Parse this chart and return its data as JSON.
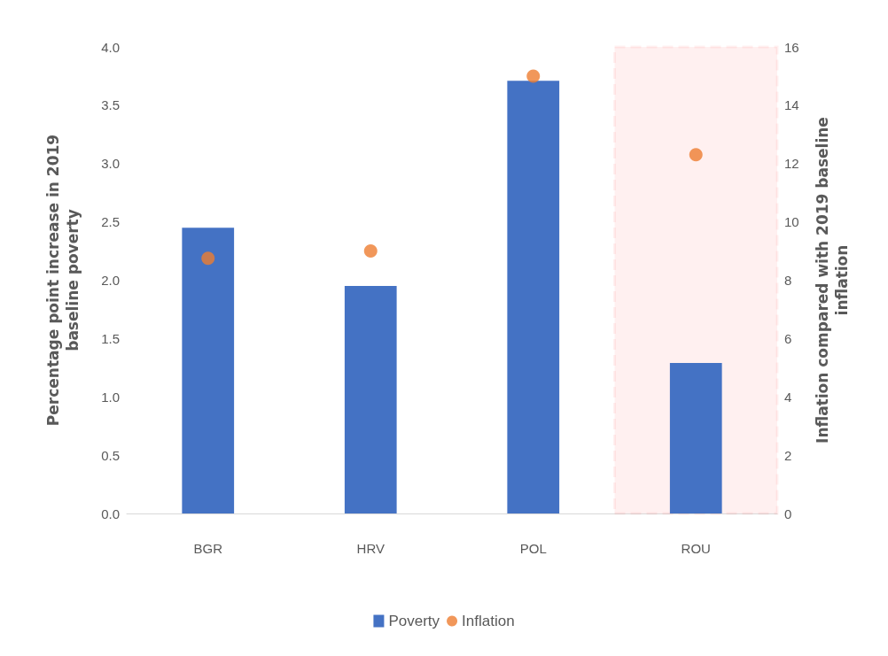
{
  "chart_data": {
    "type": "bar",
    "categories": [
      "BGR",
      "HRV",
      "POL",
      "ROU"
    ],
    "series": [
      {
        "name": "Poverty",
        "color": "#4472c4",
        "values": [
          2.45,
          1.95,
          3.71,
          1.29
        ]
      },
      {
        "name": "Inflation",
        "type": "scatter",
        "axis": "y2",
        "color": "#ed7d31",
        "marker": "circle",
        "values": [
          8.75,
          9.0,
          15.0,
          12.3
        ]
      }
    ],
    "ylabel": "Percentage point increase in 2019 baseline poverty",
    "y2label": "Inflation compared with 2019 baseline inflation",
    "ylim": [
      0,
      4
    ],
    "yticks": [
      {
        "value": 0,
        "label": "0.0"
      },
      {
        "value": 0.5,
        "label": "0.5"
      },
      {
        "value": 1,
        "label": "1.0"
      },
      {
        "value": 1.5,
        "label": "1.5"
      },
      {
        "value": 2,
        "label": "2.0"
      },
      {
        "value": 2.5,
        "label": "2.5"
      },
      {
        "value": 3,
        "label": "3.0"
      },
      {
        "value": 3.5,
        "label": "3.5"
      },
      {
        "value": 4,
        "label": "4.0"
      }
    ],
    "y2lim": [
      0,
      16
    ],
    "y2ticks": [
      0,
      2,
      4,
      6,
      8,
      10,
      12,
      14,
      16
    ],
    "bands": [
      {
        "axis": "x",
        "from": "ROU",
        "to": "ROU",
        "color": "#ff0000"
      }
    ],
    "grid": false,
    "legend": "bottom"
  }
}
